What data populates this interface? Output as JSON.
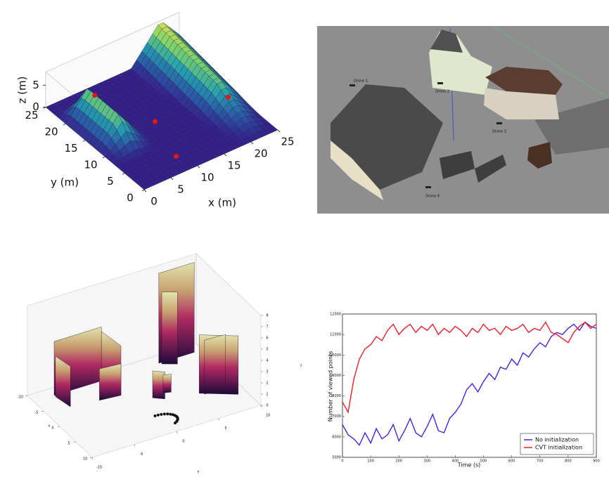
{
  "chart_data": [
    {
      "type": "surface",
      "xlabel": "x (m)",
      "ylabel": "y (m)",
      "zlabel": "z (m)",
      "xlim": [
        0,
        25
      ],
      "ylim": [
        0,
        25
      ],
      "zlim": [
        0,
        8
      ],
      "xticks": [
        0,
        5,
        10,
        15,
        20,
        25
      ],
      "yticks": [
        0,
        5,
        10,
        15,
        20,
        25
      ],
      "zticks": [
        0,
        5
      ]
    },
    {
      "type": "pointcloud",
      "xlabel": "x",
      "ylabel": "y",
      "zlabel": "z",
      "xlim": [
        -10,
        10
      ],
      "ylim": [
        -10,
        10
      ],
      "zlim": [
        0,
        8
      ],
      "xticks": [
        -10,
        -5,
        0,
        5,
        10
      ],
      "yticks": [
        -10,
        -5,
        0,
        5,
        10
      ],
      "zticks": [
        0,
        1,
        2,
        3,
        4,
        5,
        6,
        7,
        8
      ]
    },
    {
      "type": "line",
      "xlabel": "Time (s)",
      "ylabel": "Number of viewed points",
      "xlim": [
        0,
        900
      ],
      "ylim": [
        5000,
        12000
      ],
      "xticks": [
        0,
        100,
        200,
        300,
        400,
        500,
        600,
        700,
        800,
        900
      ],
      "yticks": [
        5000,
        6000,
        7000,
        8000,
        9000,
        10000,
        11000,
        12000
      ],
      "legend": "lower right",
      "x": [
        0,
        20,
        40,
        60,
        80,
        100,
        120,
        140,
        160,
        180,
        200,
        220,
        240,
        260,
        280,
        300,
        320,
        340,
        360,
        380,
        400,
        420,
        440,
        460,
        480,
        500,
        520,
        540,
        560,
        580,
        600,
        620,
        640,
        660,
        680,
        700,
        720,
        740,
        760,
        780,
        800,
        820,
        840,
        860,
        880,
        900
      ],
      "series": [
        {
          "name": "No initialization",
          "color": "#4a1ee8",
          "values": [
            6600,
            6100,
            5900,
            5600,
            6200,
            5700,
            6400,
            5900,
            6100,
            6600,
            5800,
            6300,
            6900,
            6200,
            6000,
            6500,
            7100,
            6300,
            6200,
            6900,
            7200,
            7600,
            8300,
            8600,
            8200,
            8700,
            9100,
            8800,
            9400,
            9300,
            9800,
            9500,
            10100,
            9900,
            10300,
            10600,
            10400,
            10900,
            11100,
            11000,
            11300,
            11500,
            11200,
            11600,
            11400,
            11300
          ]
        },
        {
          "name": "CVT initialization",
          "color": "#f01c24",
          "values": [
            7700,
            7200,
            8800,
            9800,
            10300,
            10500,
            10900,
            10700,
            11200,
            11500,
            11000,
            11300,
            11500,
            11100,
            11400,
            11200,
            11500,
            11000,
            11300,
            11100,
            11400,
            11200,
            10900,
            11300,
            11100,
            11500,
            11200,
            11300,
            11000,
            11400,
            11200,
            11300,
            11500,
            11100,
            11300,
            11200,
            11600,
            11100,
            11000,
            10800,
            10600,
            11100,
            11400,
            11600,
            11300,
            11500
          ]
        }
      ]
    }
  ],
  "simulation": {
    "labels": [
      "Drone 1",
      "Drone 2",
      "Drone 3",
      "Drone 4"
    ]
  }
}
